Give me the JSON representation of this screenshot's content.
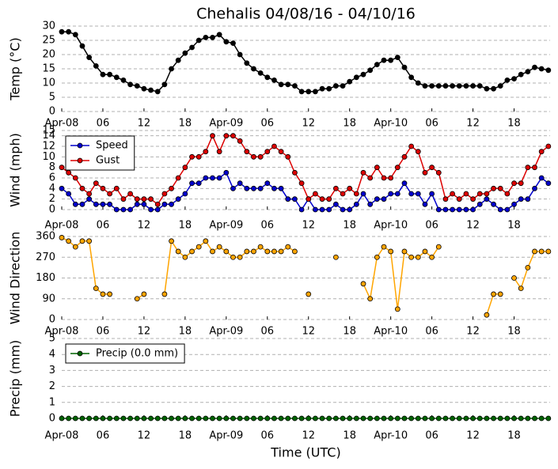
{
  "chart_data": [
    {
      "type": "line",
      "title": "Chehalis 04/08/16 - 04/10/16",
      "ylabel": "Temp (°C)",
      "xlim": [
        0,
        71.25
      ],
      "xticks": [
        {
          "value": 0,
          "label": "Apr-08"
        },
        {
          "value": 6,
          "label": "06"
        },
        {
          "value": 12,
          "label": "12"
        },
        {
          "value": 18,
          "label": "18"
        },
        {
          "value": 24,
          "label": "Apr-09"
        },
        {
          "value": 30,
          "label": "06"
        },
        {
          "value": 36,
          "label": "12"
        },
        {
          "value": 42,
          "label": "18"
        },
        {
          "value": 48,
          "label": "Apr-10"
        },
        {
          "value": 54,
          "label": "06"
        },
        {
          "value": 60,
          "label": "12"
        },
        {
          "value": 66,
          "label": "18"
        }
      ],
      "ylim": [
        0,
        30
      ],
      "yticks": [
        0,
        5,
        10,
        15,
        20,
        25,
        30
      ],
      "grid": true,
      "series": [
        {
          "color": "#000000",
          "values": [
            28,
            28,
            27,
            23,
            19,
            16,
            13,
            13,
            12,
            11,
            9.5,
            9,
            8,
            7.5,
            7,
            9.5,
            15,
            18,
            20.5,
            22.5,
            25,
            26,
            26,
            27,
            24.5,
            24,
            20,
            17,
            15,
            13.5,
            12,
            11,
            9.5,
            9.5,
            9,
            7,
            7,
            7,
            8,
            8,
            9,
            9,
            10.5,
            12,
            13,
            14.5,
            16.5,
            18,
            18,
            19,
            15.5,
            12,
            10,
            9,
            9,
            9,
            9,
            9,
            9,
            9,
            9,
            9,
            8,
            8,
            9,
            11,
            11.5,
            13,
            14,
            15.5,
            15,
            14.5
          ]
        }
      ]
    },
    {
      "type": "line",
      "ylabel": "Wind (mph)",
      "legend": "upper left",
      "xlim": [
        0,
        71.25
      ],
      "xticks": [
        {
          "value": 0,
          "label": "Apr-08"
        },
        {
          "value": 6,
          "label": "06"
        },
        {
          "value": 12,
          "label": "12"
        },
        {
          "value": 18,
          "label": "18"
        },
        {
          "value": 24,
          "label": "Apr-09"
        },
        {
          "value": 30,
          "label": "06"
        },
        {
          "value": 36,
          "label": "12"
        },
        {
          "value": 42,
          "label": "18"
        },
        {
          "value": 48,
          "label": "Apr-10"
        },
        {
          "value": 54,
          "label": "06"
        },
        {
          "value": 60,
          "label": "12"
        },
        {
          "value": 66,
          "label": "18"
        }
      ],
      "ylim": [
        0,
        15
      ],
      "yticks": [
        0,
        2,
        4,
        6,
        8,
        10,
        12,
        14,
        15
      ],
      "grid": true,
      "series": [
        {
          "name": "Speed",
          "color": "#0000cc",
          "values": [
            4,
            3,
            1,
            1,
            2,
            1,
            1,
            1,
            0,
            0,
            0,
            1,
            1,
            0,
            0,
            1,
            1,
            2,
            3,
            5,
            5,
            6,
            6,
            6,
            7,
            4,
            5,
            4,
            4,
            4,
            5,
            4,
            4,
            2,
            2,
            0,
            2,
            0,
            0,
            0,
            1,
            0,
            0,
            1,
            3,
            1,
            2,
            2,
            3,
            3,
            5,
            3,
            3,
            1,
            3,
            0,
            0,
            0,
            0,
            0,
            0,
            1,
            2,
            1,
            0,
            0,
            1,
            2,
            2,
            4,
            6,
            5
          ]
        },
        {
          "name": "Gust",
          "color": "#dd0000",
          "values": [
            8,
            7,
            6,
            4,
            3,
            5,
            4,
            3,
            4,
            2,
            3,
            2,
            2,
            2,
            1,
            3,
            4,
            6,
            8,
            10,
            10,
            11,
            14,
            11,
            14,
            14,
            13,
            11,
            10,
            10,
            11,
            12,
            11,
            10,
            7,
            5,
            2,
            3,
            2,
            2,
            4,
            3,
            4,
            3,
            7,
            6,
            8,
            6,
            6,
            8,
            10,
            12,
            11,
            7,
            8,
            7,
            2,
            3,
            2,
            3,
            2,
            3,
            3,
            4,
            4,
            3,
            5,
            5,
            8,
            8,
            11,
            12
          ]
        }
      ]
    },
    {
      "type": "line",
      "ylabel": "Wind Direction",
      "xlim": [
        0,
        71.25
      ],
      "xticks": [
        {
          "value": 0,
          "label": "Apr-08"
        },
        {
          "value": 6,
          "label": "06"
        },
        {
          "value": 12,
          "label": "12"
        },
        {
          "value": 18,
          "label": "18"
        },
        {
          "value": 24,
          "label": "Apr-09"
        },
        {
          "value": 30,
          "label": "06"
        },
        {
          "value": 36,
          "label": "12"
        },
        {
          "value": 42,
          "label": "18"
        },
        {
          "value": 48,
          "label": "Apr-10"
        },
        {
          "value": 54,
          "label": "06"
        },
        {
          "value": 60,
          "label": "12"
        },
        {
          "value": 66,
          "label": "18"
        }
      ],
      "ylim": [
        0,
        360
      ],
      "yticks": [
        0,
        90,
        180,
        270,
        360
      ],
      "grid": true,
      "series": [
        {
          "color": "#ffa500",
          "values": [
            355,
            340,
            315,
            340,
            340,
            135,
            110,
            110,
            null,
            null,
            null,
            90,
            110,
            null,
            null,
            110,
            340,
            295,
            270,
            295,
            315,
            340,
            295,
            315,
            295,
            270,
            270,
            295,
            295,
            315,
            295,
            295,
            295,
            315,
            295,
            null,
            110,
            null,
            null,
            null,
            270,
            null,
            null,
            null,
            155,
            90,
            270,
            315,
            295,
            45,
            295,
            270,
            270,
            295,
            270,
            315,
            null,
            null,
            null,
            null,
            null,
            null,
            20,
            110,
            110,
            null,
            180,
            135,
            225,
            295,
            295,
            295
          ]
        }
      ]
    },
    {
      "type": "line",
      "ylabel": "Precip (mm)",
      "xlabel": "Time (UTC)",
      "legend": "upper left",
      "xlim": [
        0,
        71.25
      ],
      "xticks": [
        {
          "value": 0,
          "label": "Apr-08"
        },
        {
          "value": 6,
          "label": "06"
        },
        {
          "value": 12,
          "label": "12"
        },
        {
          "value": 18,
          "label": "18"
        },
        {
          "value": 24,
          "label": "Apr-09"
        },
        {
          "value": 30,
          "label": "06"
        },
        {
          "value": 36,
          "label": "12"
        },
        {
          "value": 42,
          "label": "18"
        },
        {
          "value": 48,
          "label": "Apr-10"
        },
        {
          "value": 54,
          "label": "06"
        },
        {
          "value": 60,
          "label": "12"
        },
        {
          "value": 66,
          "label": "18"
        }
      ],
      "ylim": [
        0,
        5
      ],
      "yticks": [
        0,
        1,
        2,
        3,
        4,
        5
      ],
      "grid": true,
      "series": [
        {
          "name": "Precip (0.0 mm)",
          "color": "#006400",
          "values": [
            0,
            0,
            0,
            0,
            0,
            0,
            0,
            0,
            0,
            0,
            0,
            0,
            0,
            0,
            0,
            0,
            0,
            0,
            0,
            0,
            0,
            0,
            0,
            0,
            0,
            0,
            0,
            0,
            0,
            0,
            0,
            0,
            0,
            0,
            0,
            0,
            0,
            0,
            0,
            0,
            0,
            0,
            0,
            0,
            0,
            0,
            0,
            0,
            0,
            0,
            0,
            0,
            0,
            0,
            0,
            0,
            0,
            0,
            0,
            0,
            0,
            0,
            0,
            0,
            0,
            0,
            0,
            0,
            0,
            0,
            0,
            0
          ]
        }
      ]
    }
  ]
}
